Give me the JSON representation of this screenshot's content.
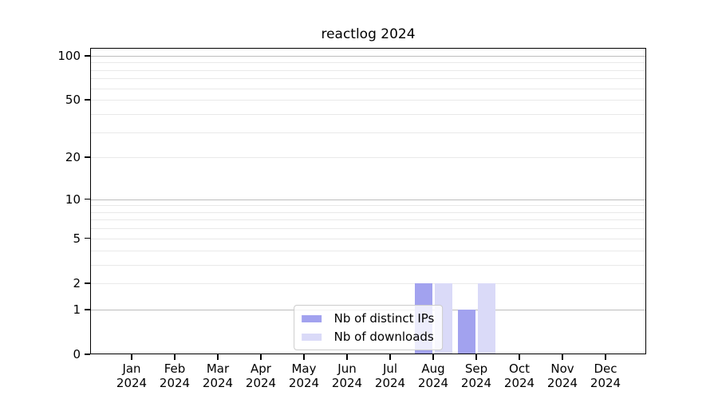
{
  "chart_data": {
    "type": "bar",
    "title": "reactlog 2024",
    "categories": [
      "Jan",
      "Feb",
      "Mar",
      "Apr",
      "May",
      "Jun",
      "Jul",
      "Aug",
      "Sep",
      "Oct",
      "Nov",
      "Dec"
    ],
    "year": "2024",
    "series": [
      {
        "name": "Nb of distinct IPs",
        "color": "#a2a2ef",
        "values": [
          0,
          0,
          0,
          0,
          0,
          0,
          0,
          2,
          1,
          0,
          0,
          0
        ]
      },
      {
        "name": "Nb of downloads",
        "color": "#dadaf8",
        "values": [
          0,
          0,
          0,
          0,
          0,
          0,
          0,
          2,
          2,
          0,
          0,
          0
        ]
      }
    ],
    "xlabel": "",
    "ylabel": "",
    "y_scale": "log1p",
    "ylim": [
      0,
      113
    ],
    "y_ticks": [
      0,
      1,
      2,
      5,
      10,
      20,
      50,
      100
    ],
    "y_major_ticks": [
      1,
      10,
      100
    ],
    "y_minor_gridlines": [
      3,
      4,
      6,
      7,
      8,
      9,
      30,
      40,
      60,
      70,
      80,
      90
    ],
    "grid": "horizontal",
    "legend_position": "lower center"
  },
  "colors": {
    "major_grid": "#bdbdbd",
    "minor_grid": "#e9e9e9",
    "spine": "#000000",
    "background": "#ffffff"
  }
}
